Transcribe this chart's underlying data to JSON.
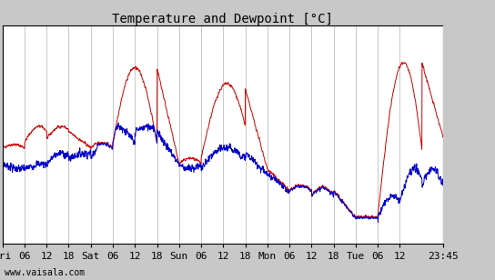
{
  "title": "Temperature and Dewpoint [°C]",
  "watermark": "www.vaisala.com",
  "ylim": [
    4,
    24.5
  ],
  "yticks": [
    6,
    8,
    10,
    12,
    14,
    16,
    18,
    20,
    22,
    24
  ],
  "x_tick_labels": [
    "Fri",
    "06",
    "12",
    "18",
    "Sat",
    "06",
    "12",
    "18",
    "Sun",
    "06",
    "12",
    "18",
    "Mon",
    "06",
    "12",
    "18",
    "Tue",
    "06",
    "12",
    "23:45"
  ],
  "x_tick_positions": [
    0,
    6,
    12,
    18,
    24,
    30,
    36,
    42,
    48,
    54,
    60,
    66,
    72,
    78,
    84,
    90,
    96,
    102,
    108,
    119.75
  ],
  "total_hours": 119.75,
  "temp_color": "#cc0000",
  "dew_color": "#0000cc",
  "bg_color": "#ffffff",
  "right_panel_color": "#c8c8c8",
  "grid_color": "#b0b0b0",
  "line_width": 0.7,
  "title_fontsize": 10,
  "tick_fontsize": 8,
  "watermark_fontsize": 7,
  "n_points": 2000
}
